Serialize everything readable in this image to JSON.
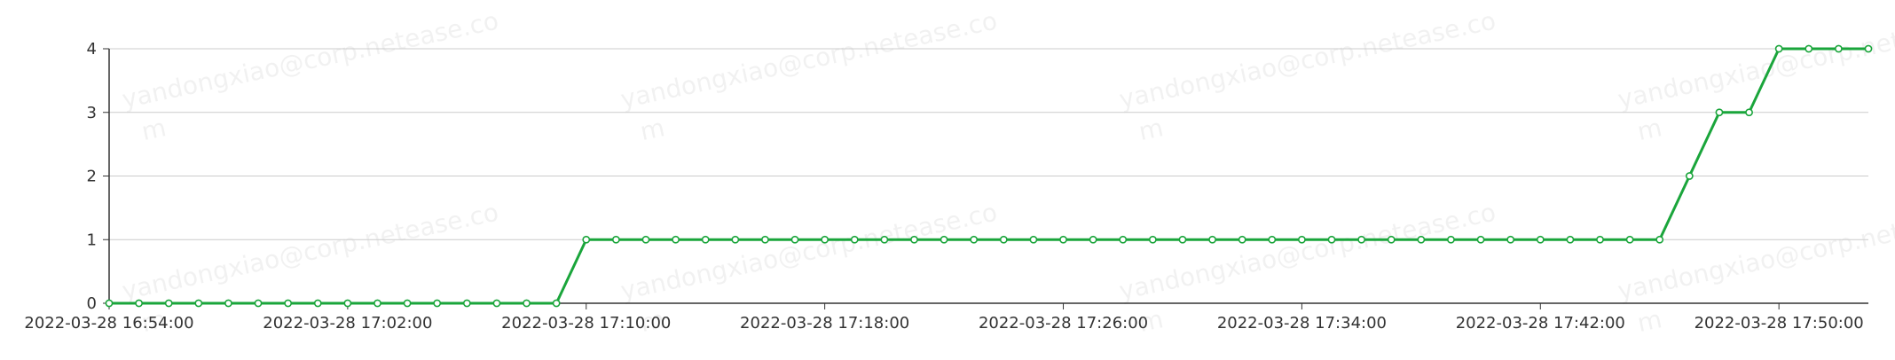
{
  "chart_data": {
    "type": "line",
    "title": "",
    "xlabel": "",
    "ylabel": "",
    "x_tick_labels": [
      "2022-03-28 16:54:00",
      "2022-03-28 17:02:00",
      "2022-03-28 17:10:00",
      "2022-03-28 17:18:00",
      "2022-03-28 17:26:00",
      "2022-03-28 17:34:00",
      "2022-03-28 17:42:00",
      "2022-03-28 17:50:00"
    ],
    "y_ticks": [
      0,
      1,
      2,
      3,
      4
    ],
    "ylim": [
      0,
      4
    ],
    "xlim": [
      "2022-03-28 16:54:00",
      "2022-03-28 17:53:00"
    ],
    "grid": true,
    "legend": "none",
    "series": [
      {
        "color": "#1aa53b",
        "x": [
          "2022-03-28 16:54:00",
          "2022-03-28 16:55:00",
          "2022-03-28 16:56:00",
          "2022-03-28 16:57:00",
          "2022-03-28 16:58:00",
          "2022-03-28 16:59:00",
          "2022-03-28 17:00:00",
          "2022-03-28 17:01:00",
          "2022-03-28 17:02:00",
          "2022-03-28 17:03:00",
          "2022-03-28 17:04:00",
          "2022-03-28 17:05:00",
          "2022-03-28 17:06:00",
          "2022-03-28 17:07:00",
          "2022-03-28 17:08:00",
          "2022-03-28 17:09:00",
          "2022-03-28 17:10:00",
          "2022-03-28 17:11:00",
          "2022-03-28 17:12:00",
          "2022-03-28 17:13:00",
          "2022-03-28 17:14:00",
          "2022-03-28 17:15:00",
          "2022-03-28 17:16:00",
          "2022-03-28 17:17:00",
          "2022-03-28 17:18:00",
          "2022-03-28 17:19:00",
          "2022-03-28 17:20:00",
          "2022-03-28 17:21:00",
          "2022-03-28 17:22:00",
          "2022-03-28 17:23:00",
          "2022-03-28 17:24:00",
          "2022-03-28 17:25:00",
          "2022-03-28 17:26:00",
          "2022-03-28 17:27:00",
          "2022-03-28 17:28:00",
          "2022-03-28 17:29:00",
          "2022-03-28 17:30:00",
          "2022-03-28 17:31:00",
          "2022-03-28 17:32:00",
          "2022-03-28 17:33:00",
          "2022-03-28 17:34:00",
          "2022-03-28 17:35:00",
          "2022-03-28 17:36:00",
          "2022-03-28 17:37:00",
          "2022-03-28 17:38:00",
          "2022-03-28 17:39:00",
          "2022-03-28 17:40:00",
          "2022-03-28 17:41:00",
          "2022-03-28 17:42:00",
          "2022-03-28 17:43:00",
          "2022-03-28 17:44:00",
          "2022-03-28 17:45:00",
          "2022-03-28 17:46:00",
          "2022-03-28 17:47:00",
          "2022-03-28 17:48:00",
          "2022-03-28 17:49:00",
          "2022-03-28 17:50:00",
          "2022-03-28 17:51:00",
          "2022-03-28 17:52:00",
          "2022-03-28 17:53:00"
        ],
        "values": [
          0,
          0,
          0,
          0,
          0,
          0,
          0,
          0,
          0,
          0,
          0,
          0,
          0,
          0,
          0,
          0,
          1,
          1,
          1,
          1,
          1,
          1,
          1,
          1,
          1,
          1,
          1,
          1,
          1,
          1,
          1,
          1,
          1,
          1,
          1,
          1,
          1,
          1,
          1,
          1,
          1,
          1,
          1,
          1,
          1,
          1,
          1,
          1,
          1,
          1,
          1,
          1,
          1,
          2,
          3,
          3,
          4,
          4,
          4,
          4
        ]
      }
    ]
  },
  "watermark": {
    "text": "yandongxiao@corp.netease.co",
    "text_wrap": "m"
  }
}
